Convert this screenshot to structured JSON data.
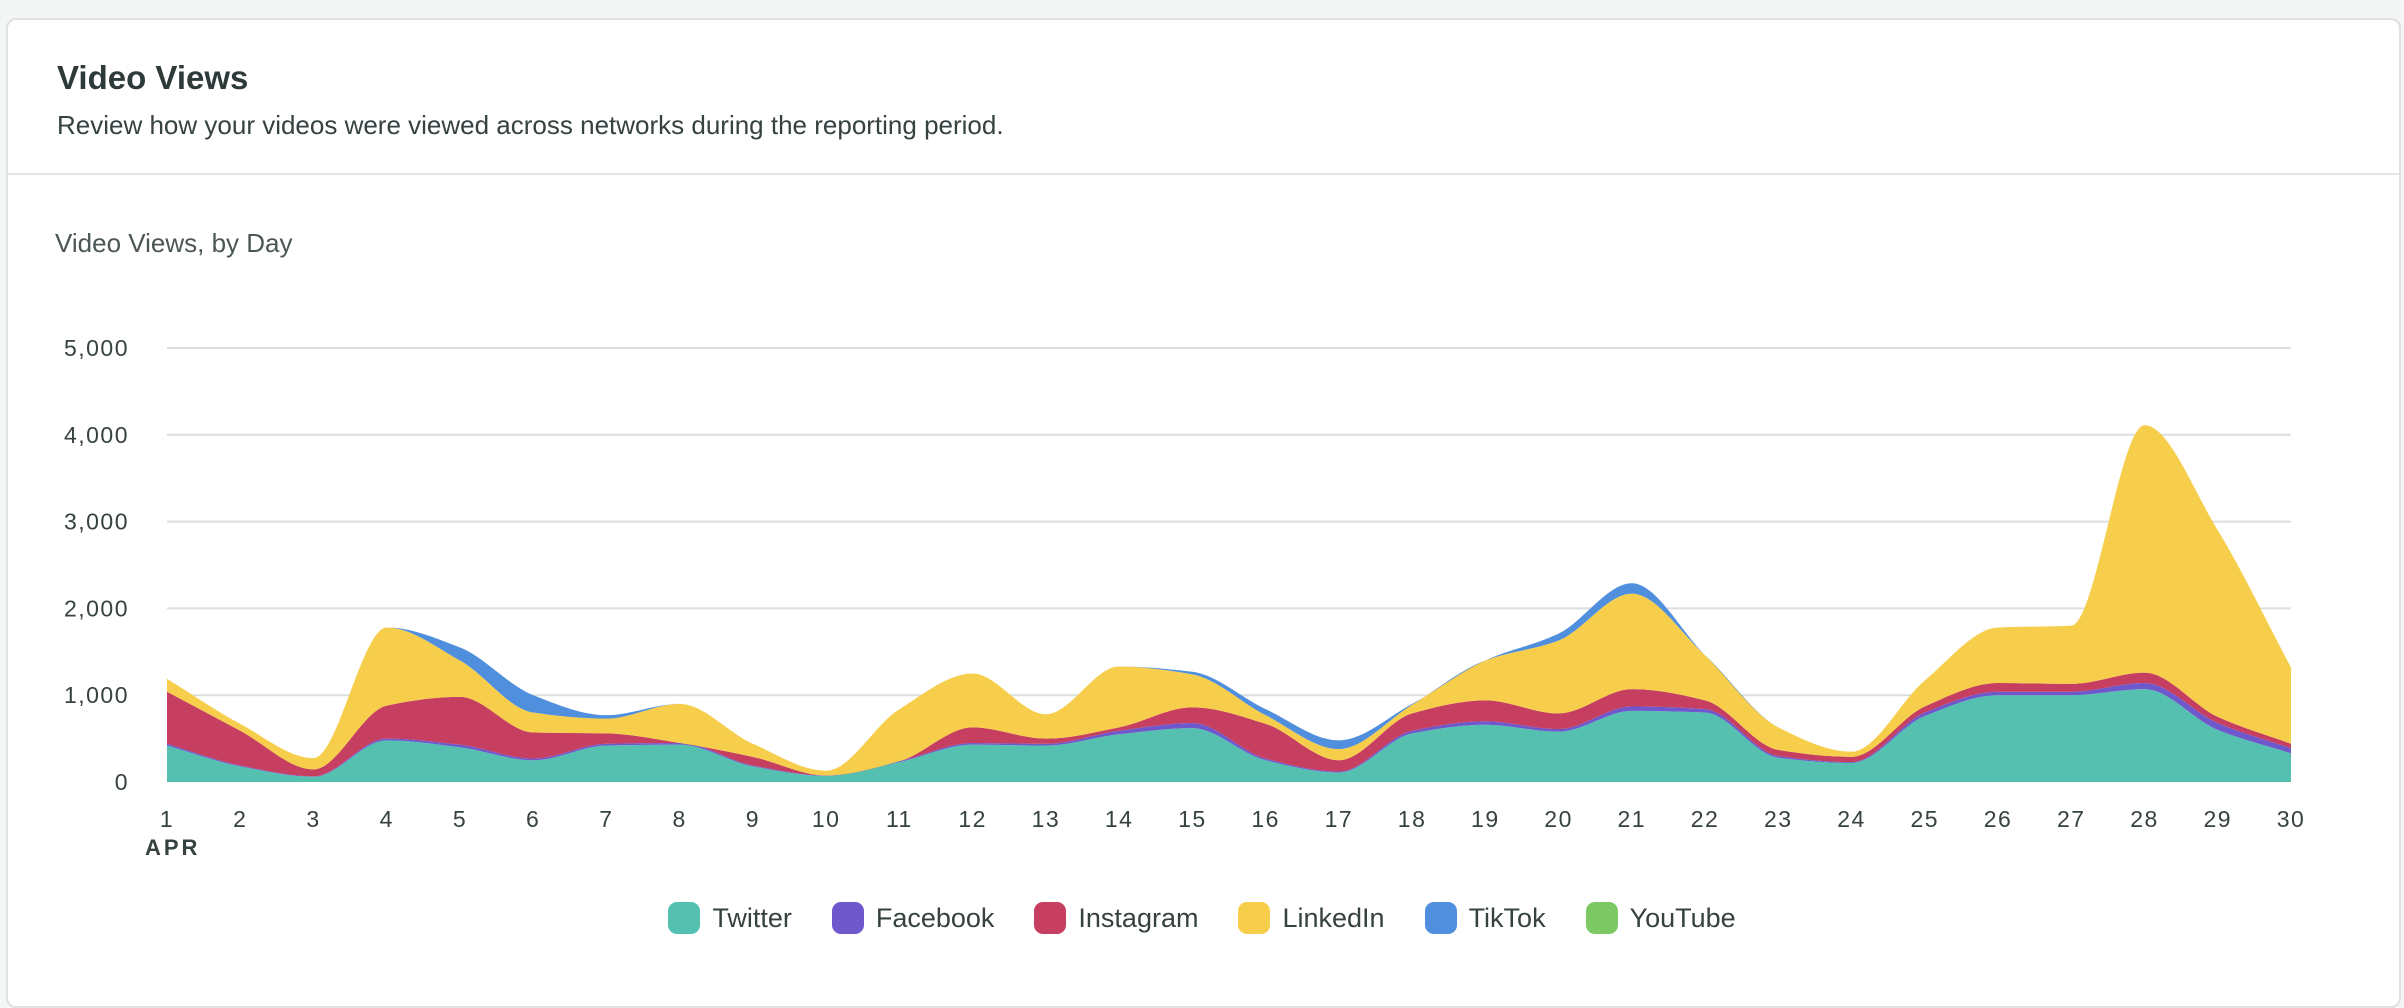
{
  "card": {
    "title": "Video Views",
    "subtitle": "Review how your videos were viewed across networks during the reporting period."
  },
  "chart_data": {
    "type": "area",
    "stacked": true,
    "title": "Video Views, by Day",
    "xlabel": "",
    "ylabel": "",
    "month_label": "APR",
    "categories": [
      "1",
      "2",
      "3",
      "4",
      "5",
      "6",
      "7",
      "8",
      "9",
      "10",
      "11",
      "12",
      "13",
      "14",
      "15",
      "16",
      "17",
      "18",
      "19",
      "20",
      "21",
      "22",
      "23",
      "24",
      "25",
      "26",
      "27",
      "28",
      "29",
      "30"
    ],
    "y_ticks": [
      "0",
      "1,000",
      "2,000",
      "3,000",
      "4,000",
      "5,000"
    ],
    "ylim": [
      0,
      5000
    ],
    "grid": true,
    "legend_position": "bottom-center",
    "series": [
      {
        "name": "Twitter",
        "color": "#55c0b0",
        "values": [
          420,
          180,
          60,
          480,
          400,
          250,
          420,
          430,
          180,
          70,
          230,
          430,
          420,
          550,
          620,
          250,
          110,
          560,
          660,
          580,
          820,
          800,
          280,
          220,
          760,
          1000,
          1000,
          1070,
          600,
          330
        ]
      },
      {
        "name": "Facebook",
        "color": "#6f58cc",
        "values": [
          20,
          10,
          5,
          20,
          30,
          20,
          20,
          20,
          10,
          5,
          10,
          20,
          20,
          40,
          60,
          20,
          10,
          30,
          40,
          30,
          50,
          40,
          20,
          10,
          40,
          40,
          40,
          70,
          80,
          60
        ]
      },
      {
        "name": "Instagram",
        "color": "#c63e60",
        "values": [
          600,
          400,
          80,
          380,
          550,
          300,
          120,
          0,
          100,
          0,
          0,
          180,
          60,
          40,
          180,
          400,
          130,
          200,
          240,
          180,
          200,
          100,
          70,
          60,
          70,
          100,
          90,
          120,
          70,
          50
        ]
      },
      {
        "name": "LinkedIn",
        "color": "#f6ce4c",
        "values": [
          150,
          80,
          130,
          900,
          420,
          230,
          170,
          450,
          150,
          55,
          600,
          620,
          280,
          700,
          380,
          100,
          130,
          100,
          460,
          840,
          1100,
          520,
          260,
          60,
          300,
          640,
          670,
          2850,
          2150,
          880
        ]
      },
      {
        "name": "TikTok",
        "color": "#4f8fde",
        "values": [
          0,
          0,
          0,
          0,
          150,
          200,
          40,
          0,
          0,
          0,
          0,
          0,
          0,
          0,
          30,
          70,
          100,
          10,
          0,
          80,
          120,
          0,
          0,
          0,
          0,
          0,
          0,
          0,
          0,
          0
        ]
      },
      {
        "name": "YouTube",
        "color": "#7cc864",
        "values": [
          0,
          0,
          0,
          0,
          0,
          0,
          0,
          0,
          0,
          0,
          0,
          0,
          0,
          0,
          0,
          0,
          0,
          0,
          0,
          0,
          0,
          0,
          0,
          0,
          0,
          0,
          0,
          0,
          0,
          0
        ]
      }
    ]
  }
}
